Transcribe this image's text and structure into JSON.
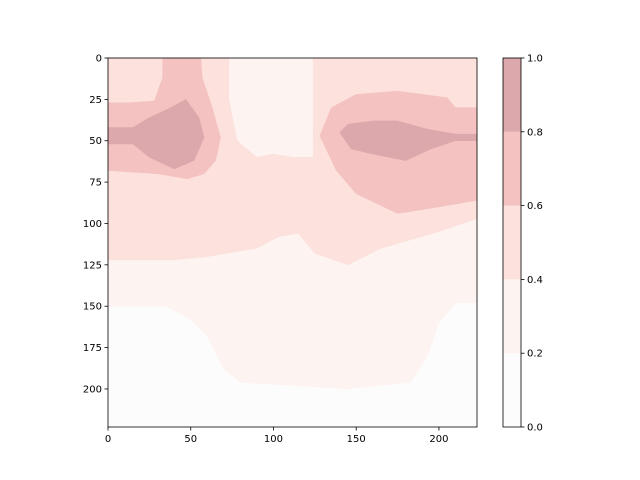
{
  "chart_data": {
    "type": "contour",
    "title": "",
    "xlabel": "",
    "ylabel": "",
    "x_ticks": [
      "0",
      "50",
      "100",
      "150",
      "200"
    ],
    "y_ticks": [
      "0",
      "25",
      "50",
      "75",
      "100",
      "125",
      "150",
      "175",
      "200"
    ],
    "colorbar_ticks": [
      "0.0",
      "0.2",
      "0.4",
      "0.6",
      "0.8",
      "1.0"
    ],
    "xlim": [
      0,
      223
    ],
    "ylim": [
      223,
      0
    ],
    "y_axis_inverted": true,
    "colorbar_range": [
      0.0,
      1.0
    ],
    "levels": [
      {
        "range": [
          0.0,
          0.2
        ],
        "color": "#fdfcfc"
      },
      {
        "range": [
          0.2,
          0.4
        ],
        "color": "#fdf3f0"
      },
      {
        "range": [
          0.4,
          0.6
        ],
        "color": "#fce1dc"
      },
      {
        "range": [
          0.6,
          0.8
        ],
        "color": "#f4c2c1"
      },
      {
        "range": [
          0.8,
          1.0
        ],
        "color": "#dca8ab"
      }
    ],
    "regions": {
      "band_0_2_top": [
        [
          0,
          0
        ],
        [
          223,
          0
        ],
        [
          223,
          148
        ],
        [
          210,
          148
        ],
        [
          200,
          160
        ],
        [
          193,
          180
        ],
        [
          183,
          196
        ],
        [
          145,
          200
        ],
        [
          80,
          196
        ],
        [
          70,
          188
        ],
        [
          60,
          168
        ],
        [
          50,
          158
        ],
        [
          35,
          150
        ],
        [
          0,
          150
        ]
      ],
      "band_0_4_top": [
        [
          0,
          0
        ],
        [
          73,
          0
        ],
        [
          73,
          25
        ],
        [
          78,
          50
        ],
        [
          90,
          60
        ],
        [
          100,
          58
        ],
        [
          112,
          60
        ],
        [
          124,
          60
        ],
        [
          124,
          0
        ],
        [
          223,
          0
        ],
        [
          223,
          97
        ],
        [
          200,
          105
        ],
        [
          165,
          115
        ],
        [
          145,
          125
        ],
        [
          125,
          118
        ],
        [
          115,
          106
        ],
        [
          103,
          108
        ],
        [
          90,
          115
        ],
        [
          60,
          120
        ],
        [
          40,
          122
        ],
        [
          0,
          122
        ]
      ],
      "band_0_6_left": [
        [
          0,
          0
        ],
        [
          33,
          0
        ],
        [
          33,
          12
        ],
        [
          28,
          26
        ],
        [
          13,
          27
        ],
        [
          0,
          27
        ],
        [
          0,
          68
        ],
        [
          30,
          70
        ],
        [
          48,
          73
        ],
        [
          58,
          70
        ],
        [
          65,
          62
        ],
        [
          68,
          48
        ],
        [
          63,
          30
        ],
        [
          57,
          12
        ],
        [
          56,
          0
        ]
      ],
      "band_0_6_right": [
        [
          128,
          47
        ],
        [
          135,
          30
        ],
        [
          150,
          22
        ],
        [
          175,
          20
        ],
        [
          205,
          24
        ],
        [
          210,
          30
        ],
        [
          223,
          30
        ],
        [
          223,
          86
        ],
        [
          200,
          90
        ],
        [
          175,
          94
        ],
        [
          150,
          82
        ],
        [
          138,
          68
        ]
      ],
      "band_0_8_left": [
        [
          0,
          42
        ],
        [
          15,
          42
        ],
        [
          25,
          36
        ],
        [
          38,
          30
        ],
        [
          47,
          25
        ],
        [
          55,
          36
        ],
        [
          58,
          48
        ],
        [
          52,
          62
        ],
        [
          40,
          67
        ],
        [
          25,
          60
        ],
        [
          15,
          52
        ],
        [
          0,
          52
        ]
      ],
      "band_0_8_right": [
        [
          140,
          45
        ],
        [
          145,
          40
        ],
        [
          160,
          38
        ],
        [
          175,
          38
        ],
        [
          193,
          43
        ],
        [
          210,
          46
        ],
        [
          223,
          46
        ],
        [
          223,
          50
        ],
        [
          210,
          50
        ],
        [
          195,
          55
        ],
        [
          180,
          62
        ],
        [
          160,
          58
        ],
        [
          147,
          55
        ]
      ]
    }
  }
}
